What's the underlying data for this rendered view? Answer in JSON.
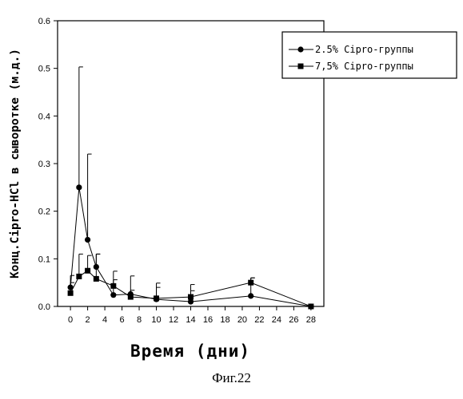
{
  "chart_data": {
    "type": "line",
    "title": "",
    "xlabel": "Время (дни)",
    "ylabel": "Конц.Cipro-HCl в сыворотке (м.д.)",
    "xlim": [
      -1.5,
      29.5
    ],
    "ylim": [
      0,
      0.6
    ],
    "x_ticks": [
      0,
      2,
      4,
      6,
      8,
      10,
      12,
      14,
      16,
      18,
      20,
      22,
      24,
      26,
      28
    ],
    "y_ticks": [
      "0.0",
      "0.1",
      "0.2",
      "0.3",
      "0.4",
      "0.5",
      "0.6"
    ],
    "grid": false,
    "legend_position": "top-right",
    "series": [
      {
        "name": "2.5% Cipro-группы",
        "marker": "circle",
        "x": [
          0,
          1,
          2,
          3,
          5,
          7,
          10,
          14,
          21,
          28
        ],
        "y": [
          0.04,
          0.25,
          0.14,
          0.083,
          0.024,
          0.026,
          0.015,
          0.01,
          0.022,
          0.0
        ],
        "err_upper": [
          0.065,
          0.503,
          0.32,
          0.11,
          0.074,
          0.064,
          0.049,
          0.033,
          0.06,
          0.0
        ]
      },
      {
        "name": "7,5% Cipro-группы",
        "marker": "square",
        "x": [
          0,
          1,
          2,
          3,
          5,
          7,
          10,
          14,
          21,
          28
        ],
        "y": [
          0.028,
          0.063,
          0.075,
          0.058,
          0.043,
          0.02,
          0.017,
          0.02,
          0.05,
          0.0
        ],
        "err_upper": [
          0.05,
          0.11,
          0.107,
          0.11,
          0.056,
          0.034,
          0.04,
          0.046,
          0.06,
          0.0
        ]
      }
    ]
  },
  "caption": "Фиг.22"
}
